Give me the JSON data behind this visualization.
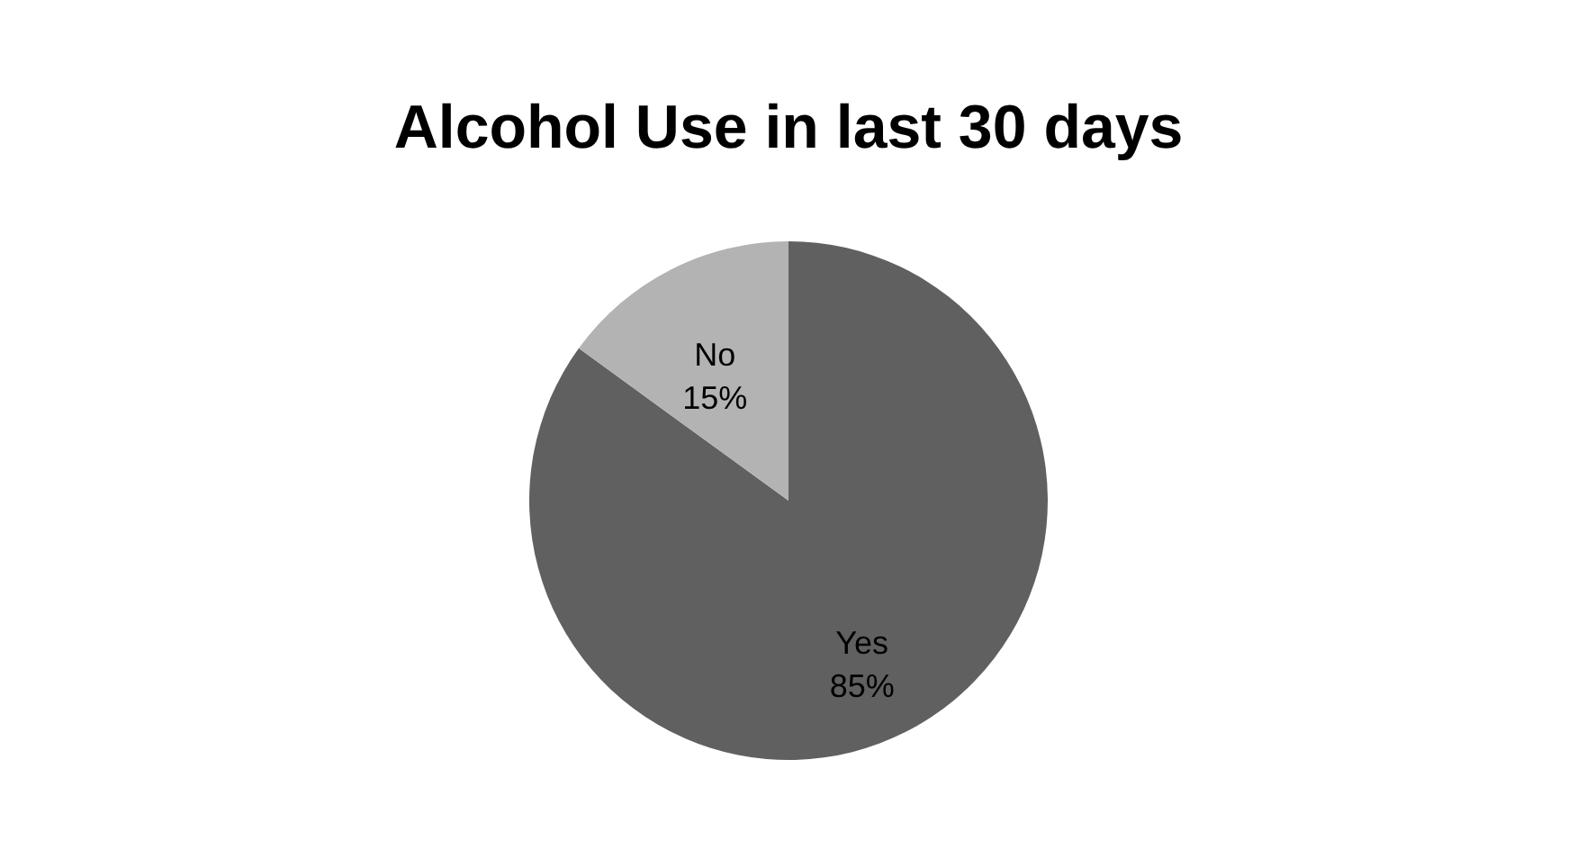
{
  "chart_data": {
    "type": "pie",
    "title": "Alcohol Use in last 30 days",
    "categories": [
      "Yes",
      "No"
    ],
    "values": [
      85,
      15
    ],
    "colors": [
      "#606060",
      "#b3b3b3"
    ],
    "value_labels": [
      "85%",
      "15%"
    ],
    "legend": false
  }
}
